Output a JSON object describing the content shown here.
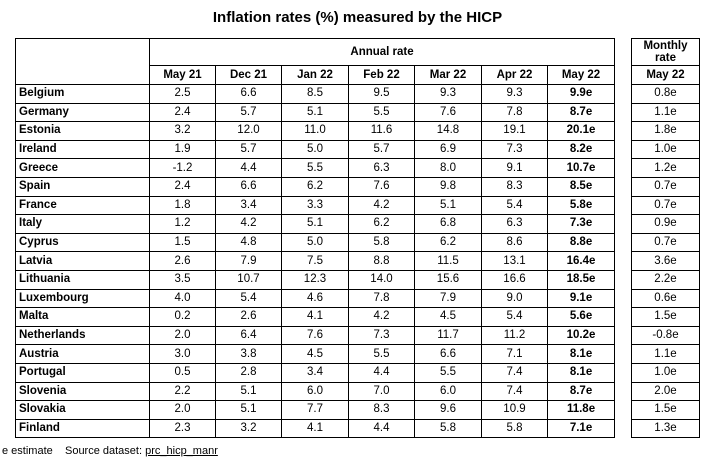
{
  "title": "Inflation rates (%) measured by the HICP",
  "annual_header": "Annual rate",
  "monthly_header": "Monthly rate",
  "columns": [
    "May 21",
    "Dec 21",
    "Jan 22",
    "Feb 22",
    "Mar 22",
    "Apr 22",
    "May 22"
  ],
  "monthly_column": "May 22",
  "rows": [
    {
      "country": "Belgium",
      "values": [
        "2.5",
        "6.6",
        "8.5",
        "9.5",
        "9.3",
        "9.3",
        "9.9e"
      ],
      "monthly": "0.8e"
    },
    {
      "country": "Germany",
      "values": [
        "2.4",
        "5.7",
        "5.1",
        "5.5",
        "7.6",
        "7.8",
        "8.7e"
      ],
      "monthly": "1.1e"
    },
    {
      "country": "Estonia",
      "values": [
        "3.2",
        "12.0",
        "11.0",
        "11.6",
        "14.8",
        "19.1",
        "20.1e"
      ],
      "monthly": "1.8e"
    },
    {
      "country": "Ireland",
      "values": [
        "1.9",
        "5.7",
        "5.0",
        "5.7",
        "6.9",
        "7.3",
        "8.2e"
      ],
      "monthly": "1.0e"
    },
    {
      "country": "Greece",
      "values": [
        "-1.2",
        "4.4",
        "5.5",
        "6.3",
        "8.0",
        "9.1",
        "10.7e"
      ],
      "monthly": "1.2e"
    },
    {
      "country": "Spain",
      "values": [
        "2.4",
        "6.6",
        "6.2",
        "7.6",
        "9.8",
        "8.3",
        "8.5e"
      ],
      "monthly": "0.7e"
    },
    {
      "country": "France",
      "values": [
        "1.8",
        "3.4",
        "3.3",
        "4.2",
        "5.1",
        "5.4",
        "5.8e"
      ],
      "monthly": "0.7e"
    },
    {
      "country": "Italy",
      "values": [
        "1.2",
        "4.2",
        "5.1",
        "6.2",
        "6.8",
        "6.3",
        "7.3e"
      ],
      "monthly": "0.9e"
    },
    {
      "country": "Cyprus",
      "values": [
        "1.5",
        "4.8",
        "5.0",
        "5.8",
        "6.2",
        "8.6",
        "8.8e"
      ],
      "monthly": "0.7e"
    },
    {
      "country": "Latvia",
      "values": [
        "2.6",
        "7.9",
        "7.5",
        "8.8",
        "11.5",
        "13.1",
        "16.4e"
      ],
      "monthly": "3.6e"
    },
    {
      "country": "Lithuania",
      "values": [
        "3.5",
        "10.7",
        "12.3",
        "14.0",
        "15.6",
        "16.6",
        "18.5e"
      ],
      "monthly": "2.2e"
    },
    {
      "country": "Luxembourg",
      "values": [
        "4.0",
        "5.4",
        "4.6",
        "7.8",
        "7.9",
        "9.0",
        "9.1e"
      ],
      "monthly": "0.6e"
    },
    {
      "country": "Malta",
      "values": [
        "0.2",
        "2.6",
        "4.1",
        "4.2",
        "4.5",
        "5.4",
        "5.6e"
      ],
      "monthly": "1.5e"
    },
    {
      "country": "Netherlands",
      "values": [
        "2.0",
        "6.4",
        "7.6",
        "7.3",
        "11.7",
        "11.2",
        "10.2e"
      ],
      "monthly": "-0.8e"
    },
    {
      "country": "Austria",
      "values": [
        "3.0",
        "3.8",
        "4.5",
        "5.5",
        "6.6",
        "7.1",
        "8.1e"
      ],
      "monthly": "1.1e"
    },
    {
      "country": "Portugal",
      "values": [
        "0.5",
        "2.8",
        "3.4",
        "4.4",
        "5.5",
        "7.4",
        "8.1e"
      ],
      "monthly": "1.0e"
    },
    {
      "country": "Slovenia",
      "values": [
        "2.2",
        "5.1",
        "6.0",
        "7.0",
        "6.0",
        "7.4",
        "8.7e"
      ],
      "monthly": "2.0e"
    },
    {
      "country": "Slovakia",
      "values": [
        "2.0",
        "5.1",
        "7.7",
        "8.3",
        "9.6",
        "10.9",
        "11.8e"
      ],
      "monthly": "1.5e"
    },
    {
      "country": "Finland",
      "values": [
        "2.3",
        "3.2",
        "4.1",
        "4.4",
        "5.8",
        "5.8",
        "7.1e"
      ],
      "monthly": "1.3e"
    }
  ],
  "footer": {
    "note": "e estimate",
    "source_label": "Source dataset:",
    "source_link": "prc_hicp_manr"
  }
}
